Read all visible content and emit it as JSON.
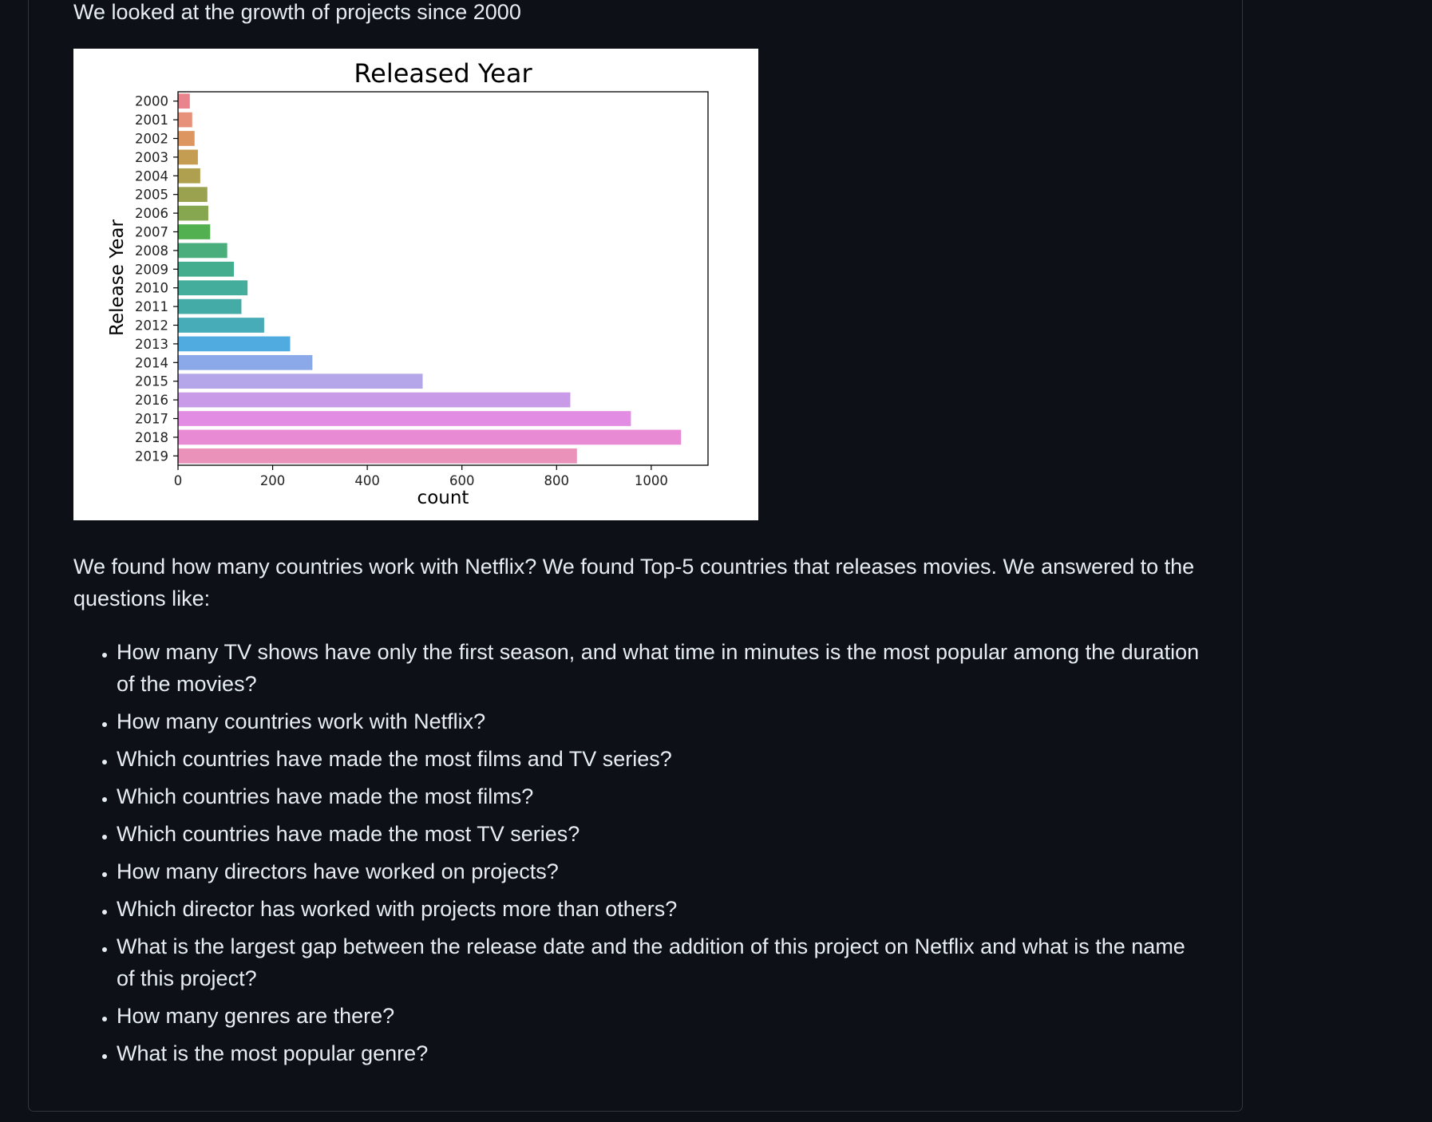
{
  "readme": {
    "intro": "We looked at the growth of projects since 2000",
    "summary": "We found how many countries work with Netflix? We found Top-5 countries that releases movies. We answered to the questions like:",
    "questions": [
      "How many TV shows have only the first season, and what time in minutes is the most popular among the duration of the movies?",
      "How many countries work with Netflix?",
      "Which countries have made the most films and TV series?",
      "Which countries have made the most films?",
      "Which countries have made the most TV series?",
      "How many directors have worked on projects?",
      "Which director has worked with projects more than others?",
      "What is the largest gap between the release date and the addition of this project on Netflix and what is the name of this project?",
      "How many genres are there?",
      "What is the most popular genre?"
    ]
  },
  "chart_data": {
    "type": "bar",
    "orientation": "horizontal",
    "title": "Released Year",
    "xlabel": "count",
    "ylabel": "Release Year",
    "categories": [
      "2000",
      "2001",
      "2002",
      "2003",
      "2004",
      "2005",
      "2006",
      "2007",
      "2008",
      "2009",
      "2010",
      "2011",
      "2012",
      "2013",
      "2014",
      "2015",
      "2016",
      "2017",
      "2018",
      "2019"
    ],
    "values": [
      25,
      30,
      35,
      42,
      47,
      62,
      64,
      68,
      104,
      118,
      147,
      134,
      182,
      237,
      284,
      517,
      829,
      957,
      1063,
      843
    ],
    "colors": [
      "#e8858c",
      "#e8917a",
      "#de9660",
      "#c49c52",
      "#afa04f",
      "#9ba24f",
      "#86a750",
      "#53b051",
      "#4aad7c",
      "#43ad8e",
      "#45ad9c",
      "#45aba7",
      "#47abb8",
      "#50ace0",
      "#8ba8e8",
      "#b4a6e8",
      "#c99ae8",
      "#e38ce3",
      "#e88ad4",
      "#ea92ba"
    ],
    "xlim": [
      0,
      1120
    ],
    "xticks": [
      0,
      200,
      400,
      600,
      800,
      1000
    ],
    "grid": false,
    "legend": false
  }
}
